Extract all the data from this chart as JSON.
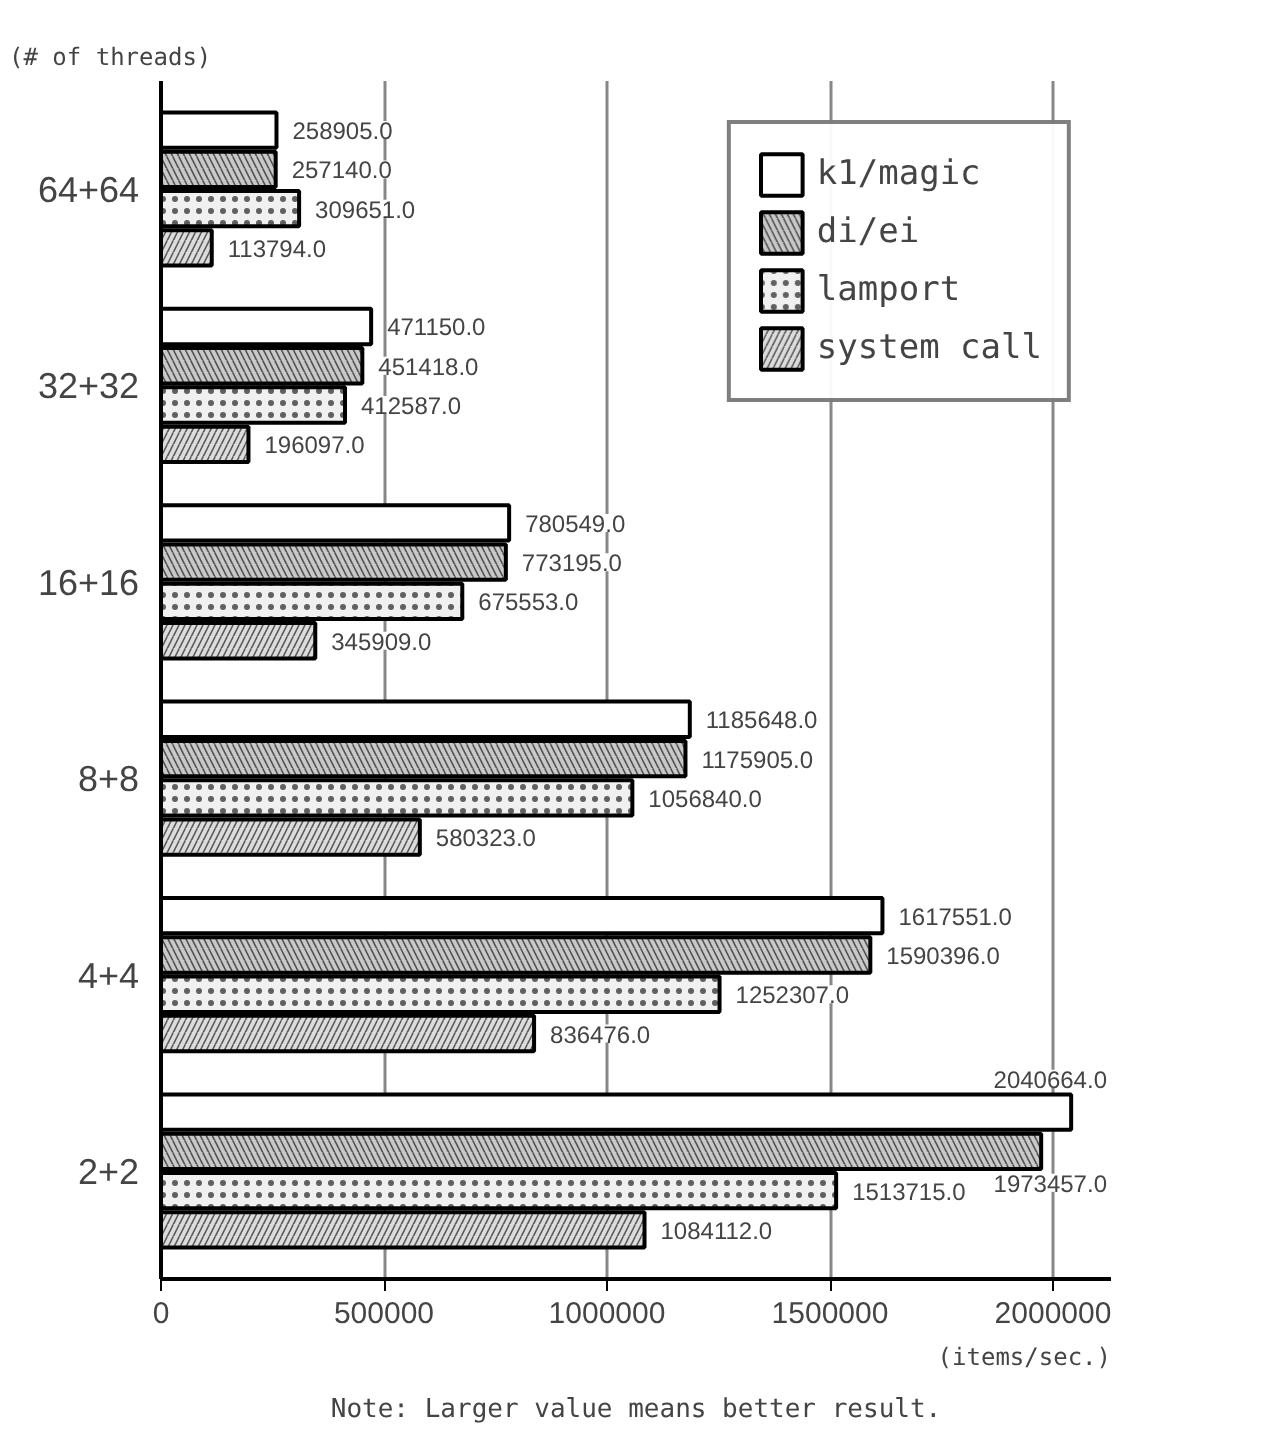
{
  "chart_data": {
    "type": "bar",
    "orientation": "horizontal",
    "ylabel": "(# of threads)",
    "xlabel": "(items/sec.)",
    "annotations": [
      "Note: Larger value means better result."
    ],
    "categories": [
      "64+64",
      "32+32",
      "16+16",
      "8+8",
      "4+4",
      "2+2"
    ],
    "series": [
      {
        "name": "k1/magic",
        "color": "#ffffff",
        "values": [
          258905,
          471150,
          780549,
          1185648,
          1617551,
          2040664
        ],
        "value_labels": [
          "258905.0",
          "471150.0",
          "780549.0",
          "1185648.0",
          "1617551.0",
          "2040664.0"
        ]
      },
      {
        "name": "di/ei",
        "color": "#c8c8c8",
        "values": [
          257140,
          451418,
          773195,
          1175905,
          1590396,
          1973457
        ],
        "value_labels": [
          "257140.0",
          "451418.0",
          "773195.0",
          "1175905.0",
          "1590396.0",
          "1973457.0"
        ]
      },
      {
        "name": "lamport",
        "color": "#f0f0f0",
        "values": [
          309651,
          412587,
          675553,
          1056840,
          1252307,
          1513715
        ],
        "value_labels": [
          "309651.0",
          "412587.0",
          "675553.0",
          "1056840.0",
          "1252307.0",
          "1513715.0"
        ]
      },
      {
        "name": "system call",
        "color": "#dcdcdc",
        "values": [
          113794,
          196097,
          345909,
          580323,
          836476,
          1084112
        ],
        "value_labels": [
          "113794.0",
          "196097.0",
          "345909.0",
          "580323.0",
          "836476.0",
          "1084112.0"
        ]
      }
    ],
    "xlim": [
      0,
      2130000
    ],
    "xticks": [
      0,
      500000,
      1000000,
      1500000,
      2000000
    ],
    "grid": "x",
    "legend": "top right"
  }
}
